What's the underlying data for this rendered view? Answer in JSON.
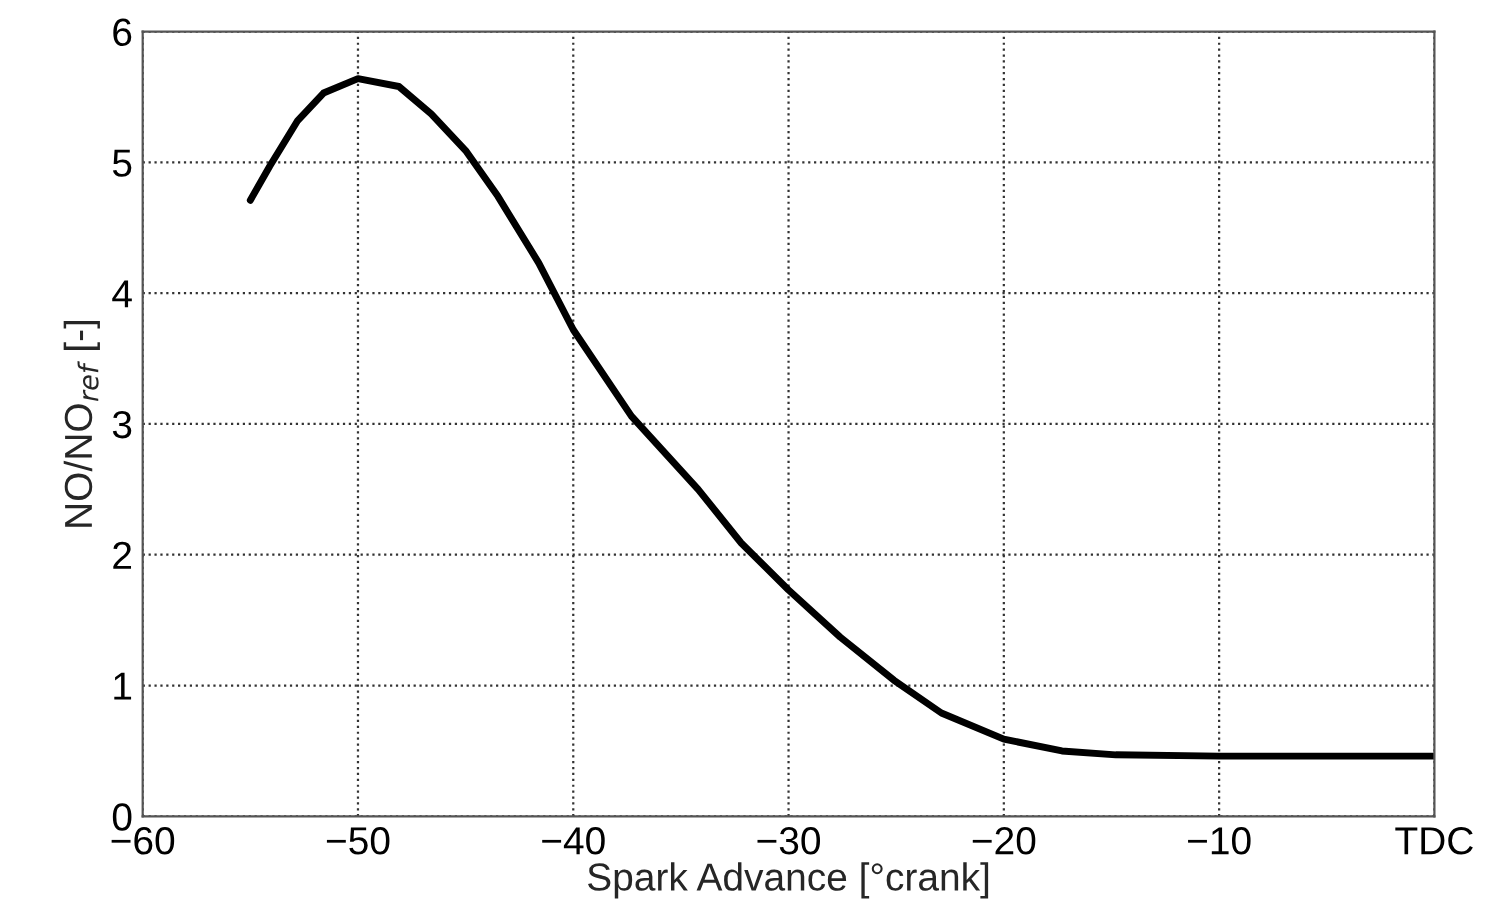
{
  "chart_data": {
    "type": "line",
    "xlabel": "Spark Advance [°crank]",
    "ylabel": "NO/NO$_{ref}$ [-]",
    "series": [
      {
        "color": "#000000",
        "x": [
          -55,
          -54.1,
          -52.8,
          -51.6,
          -50,
          -48.1,
          -46.6,
          -45,
          -43.5,
          -41.6,
          -40,
          -37.3,
          -34.2,
          -32.2,
          -30,
          -27.6,
          -25.1,
          -22.9,
          -20,
          -17.3,
          -14.8,
          -10,
          0
        ],
        "values": [
          4.71,
          4.97,
          5.32,
          5.53,
          5.64,
          5.58,
          5.37,
          5.09,
          4.74,
          4.23,
          3.72,
          3.06,
          2.5,
          2.09,
          1.73,
          1.37,
          1.04,
          0.79,
          0.59,
          0.5,
          0.47,
          0.46,
          0.46
        ]
      }
    ],
    "xlim": [
      -60,
      0
    ],
    "xticks": [
      -60,
      -50,
      -40,
      -30,
      -20,
      -10,
      {
        "value": 0,
        "label": "TDC"
      }
    ],
    "ylim": [
      0,
      6
    ],
    "yticks": [
      0,
      1,
      2,
      3,
      4,
      5,
      6
    ],
    "grid": true,
    "line_style": "solid",
    "marker": "none"
  }
}
